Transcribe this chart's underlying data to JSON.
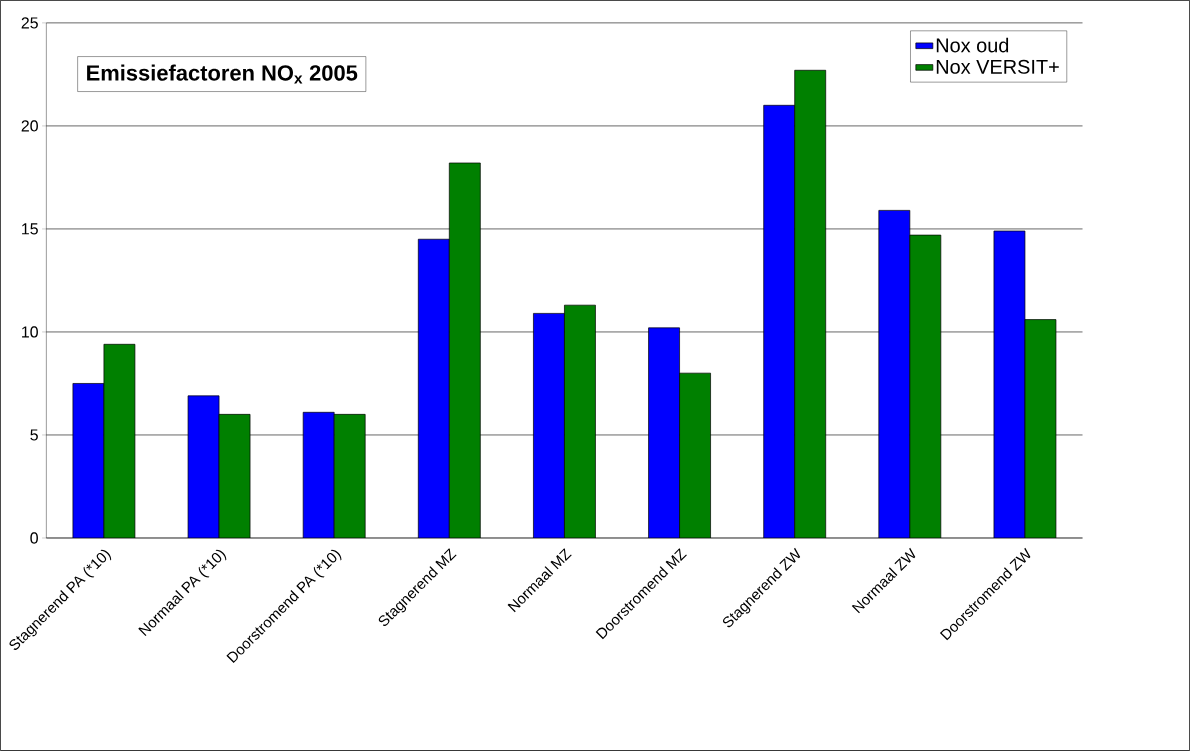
{
  "chart_data": {
    "type": "bar",
    "title": "**Emissiefactoren NO$_{x}$ 2005**",
    "categories": [
      "Stagnerend PA (*10)",
      "Normaal PA (*10)",
      "Doorstromend PA (*10)",
      "Stagnerend MZ",
      "Normaal MZ",
      "Doorstromend MZ",
      "Stagnerend ZW",
      "Normaal ZW",
      "Doorstromend ZW"
    ],
    "series": [
      {
        "name": "Nox oud",
        "color": "#0000ff",
        "values": [
          7.5,
          6.9,
          6.1,
          14.5,
          10.9,
          10.2,
          21.0,
          15.9,
          14.9
        ]
      },
      {
        "name": "Nox VERSIT+",
        "color": "#008000",
        "values": [
          9.4,
          6.0,
          6.0,
          18.2,
          11.3,
          8.0,
          22.7,
          14.7,
          10.6
        ]
      }
    ],
    "ylim": [
      0,
      25
    ],
    "yticks": [
      0,
      5,
      10,
      15,
      20,
      25
    ],
    "grid": "y",
    "legend": "top right"
  }
}
